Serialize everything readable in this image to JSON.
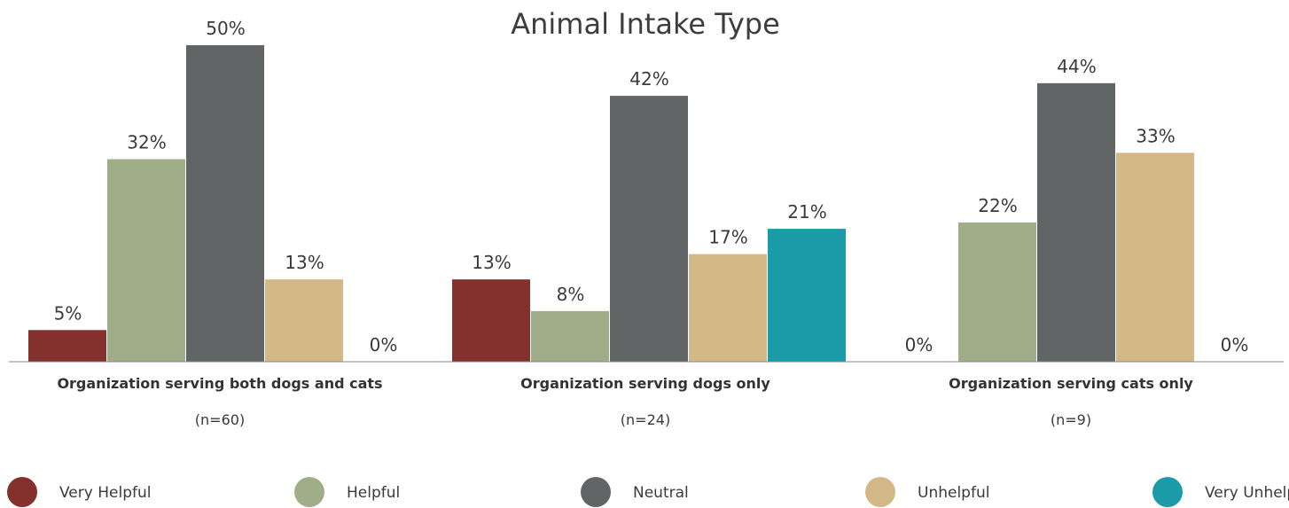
{
  "chart_data": {
    "type": "bar",
    "title": "Animal Intake Type",
    "categories": [
      "Organization serving both dogs and cats",
      "Organization serving dogs only",
      "Organization serving cats only"
    ],
    "category_notes": [
      "(n=60)",
      "(n=24)",
      "(n=9)"
    ],
    "series": [
      {
        "name": "Very Helpful",
        "color": "#84302c",
        "values": [
          5,
          13,
          0
        ]
      },
      {
        "name": "Helpful",
        "color": "#9fae88",
        "values": [
          32,
          8,
          22
        ]
      },
      {
        "name": "Neutral",
        "color": "#626566",
        "values": [
          50,
          42,
          44
        ]
      },
      {
        "name": "Unhelpful",
        "color": "#d2b886",
        "values": [
          13,
          17,
          33
        ]
      },
      {
        "name": "Very Unhelpful",
        "color": "#1b9aa8",
        "values": [
          0,
          21,
          0
        ]
      }
    ],
    "value_suffix": "%",
    "ylim": [
      0,
      50
    ],
    "grid": false,
    "legend_position": "bottom"
  }
}
